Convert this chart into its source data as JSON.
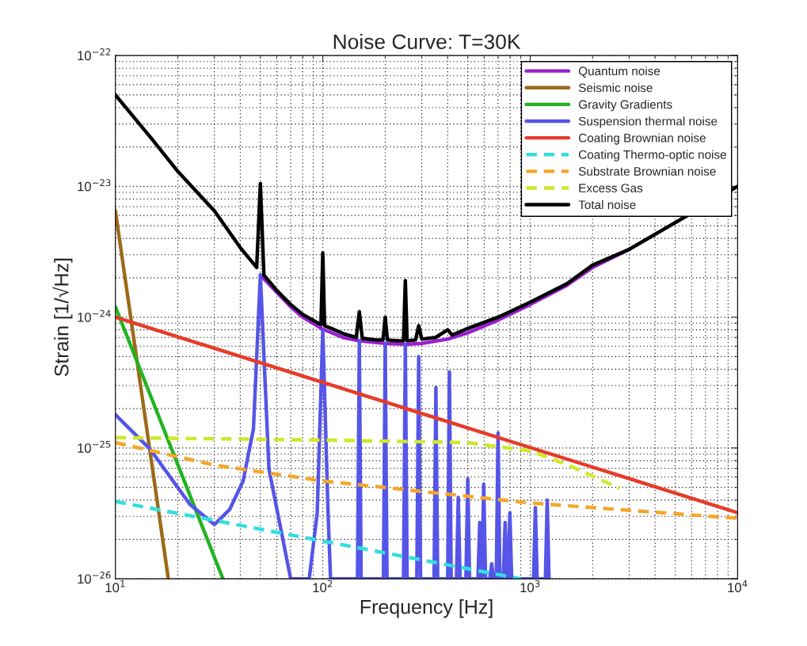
{
  "chart_data": {
    "type": "line",
    "title": "Noise Curve: T=30K",
    "xlabel": "Frequency [Hz]",
    "ylabel": "Strain [1/√Hz]",
    "log": "xy",
    "grid": true,
    "legend": "top right",
    "marker": "none",
    "xlim": [
      10,
      10000
    ],
    "ylim": [
      1e-26,
      1e-22
    ],
    "xticks": [
      {
        "value": 10,
        "label": "10$^{1}$"
      },
      {
        "value": 100,
        "label": "10$^{2}$"
      },
      {
        "value": 1000,
        "label": "10$^{3}$"
      },
      {
        "value": 10000,
        "label": "10$^{4}$"
      }
    ],
    "yticks": [
      {
        "value": 1e-26,
        "label": "10$^{−26}$"
      },
      {
        "value": 1e-25,
        "label": "10$^{−25}$"
      },
      {
        "value": 1e-24,
        "label": "10$^{−24}$"
      },
      {
        "value": 1e-23,
        "label": "10$^{−23}$"
      },
      {
        "value": 1e-22,
        "label": "10$^{−22}$"
      }
    ],
    "series": [
      {
        "name": "Quantum noise",
        "color": "#9a1fd0",
        "line_style": "solid",
        "x": [
          50,
          60,
          70,
          80,
          100,
          125,
          150,
          200,
          250,
          300,
          400,
          500,
          700,
          1000,
          1500,
          2000,
          3000
        ],
        "values": [
          2.1e-24,
          1.55e-24,
          1.2e-24,
          1e-24,
          8.1e-25,
          7e-25,
          6.6e-25,
          6.3e-25,
          6.2e-25,
          6.3e-25,
          6.8e-25,
          7.6e-25,
          9.5e-25,
          1.25e-24,
          1.75e-24,
          2.4e-24,
          3.3e-24
        ]
      },
      {
        "name": "Seismic noise",
        "color": "#9c6a1a",
        "line_style": "solid",
        "x": [
          10,
          18
        ],
        "values": [
          6.5e-24,
          1e-26
        ]
      },
      {
        "name": "Gravity Gradients",
        "color": "#22b422",
        "line_style": "solid",
        "x": [
          10,
          33
        ],
        "values": [
          1.2e-24,
          1e-26
        ]
      },
      {
        "name": "Suspension thermal noise",
        "color": "#5555e8",
        "line_style": "solid",
        "x": [
          10,
          14.7,
          22.9,
          30,
          35.6,
          41.3,
          46.3,
          50,
          55,
          70,
          86,
          94,
          100,
          106,
          109,
          147,
          150,
          153,
          196,
          200,
          204,
          245,
          250,
          255,
          284,
          290,
          296,
          344,
          351,
          358,
          400,
          408,
          416,
          441,
          450,
          459,
          490,
          500,
          510,
          560,
          571,
          582,
          585,
          597,
          609,
          639,
          652,
          665,
          686,
          700,
          714,
          742,
          757,
          772,
          782,
          798,
          814,
          1038,
          1059,
          1080,
          1184,
          1208,
          1232
        ],
        "values": [
          1.8e-25,
          9.8e-26,
          3.7e-26,
          2.6e-26,
          3.4e-26,
          5.6e-26,
          1.4e-25,
          2.1e-24,
          6.9e-26,
          1e-26,
          1e-26,
          3.2e-26,
          8e-25,
          3.2e-26,
          1e-26,
          1e-26,
          6.6e-25,
          1e-26,
          1e-26,
          6.3e-25,
          1e-26,
          1e-26,
          6.2e-25,
          1e-26,
          1e-26,
          5e-25,
          1e-26,
          1e-26,
          2.9e-25,
          1e-26,
          1e-26,
          3.8e-25,
          1e-26,
          1e-26,
          4.2e-26,
          1e-26,
          1e-26,
          5.8e-26,
          1e-26,
          1e-26,
          2.7e-26,
          1e-26,
          1e-26,
          5.3e-26,
          1e-26,
          1e-26,
          1.3e-26,
          1e-26,
          1e-26,
          1.3e-25,
          1e-26,
          1e-26,
          2.7e-26,
          1e-26,
          1e-26,
          3.2e-26,
          1e-26,
          1e-26,
          3.5e-26,
          1e-26,
          1e-26,
          4e-26,
          1e-26
        ]
      },
      {
        "name": "Coating Brownian noise",
        "color": "#e63c2a",
        "line_style": "solid",
        "x": [
          10,
          10000
        ],
        "values": [
          1e-24,
          3.2e-26
        ]
      },
      {
        "name": "Coating Thermo-optic noise",
        "color": "#33dede",
        "line_style": "dashed",
        "x": [
          10,
          900
        ],
        "values": [
          3.9e-26,
          1e-26
        ]
      },
      {
        "name": "Substrate Brownian noise",
        "color": "#f5a62a",
        "line_style": "dashed",
        "x": [
          10,
          30,
          100,
          1000,
          10000
        ],
        "values": [
          1.1e-25,
          7.4e-26,
          5.6e-26,
          3.8e-26,
          2.9e-26
        ]
      },
      {
        "name": "Excess Gas",
        "color": "#cfe82a",
        "line_style": "dashed",
        "x": [
          10,
          100,
          500,
          1000,
          1500,
          2000,
          2700
        ],
        "values": [
          1.2e-25,
          1.15e-25,
          1.1e-25,
          9.5e-26,
          7.5e-26,
          6.1e-26,
          4.9e-26
        ]
      },
      {
        "name": "Total noise",
        "color": "#000000",
        "line_style": "solid",
        "x": [
          10,
          15,
          20,
          30,
          40,
          48,
          50,
          52,
          60,
          70,
          80,
          95,
          98,
          100,
          102,
          110,
          125,
          145,
          150,
          155,
          180,
          195,
          200,
          205,
          230,
          245,
          250,
          255,
          280,
          290,
          300,
          350,
          400,
          420,
          500,
          700,
          1000,
          1500,
          2000,
          3000,
          10000
        ],
        "values": [
          5e-23,
          2.3e-23,
          1.3e-23,
          6.5e-24,
          3.4e-24,
          2.4e-24,
          1.05e-23,
          2.1e-24,
          1.6e-24,
          1.25e-24,
          1.05e-24,
          9e-25,
          8.8e-25,
          3.1e-24,
          8.6e-25,
          8.2e-25,
          7.5e-25,
          7e-25,
          1.1e-24,
          6.9e-25,
          6.7e-25,
          6.7e-25,
          1e-24,
          6.7e-25,
          6.6e-25,
          6.6e-25,
          1.9e-24,
          6.6e-25,
          6.7e-25,
          8.6e-25,
          6.8e-25,
          7e-25,
          8e-25,
          7.3e-25,
          8.2e-25,
          1e-24,
          1.3e-24,
          1.8e-24,
          2.5e-24,
          3.3e-24,
          1e-23
        ]
      }
    ]
  }
}
